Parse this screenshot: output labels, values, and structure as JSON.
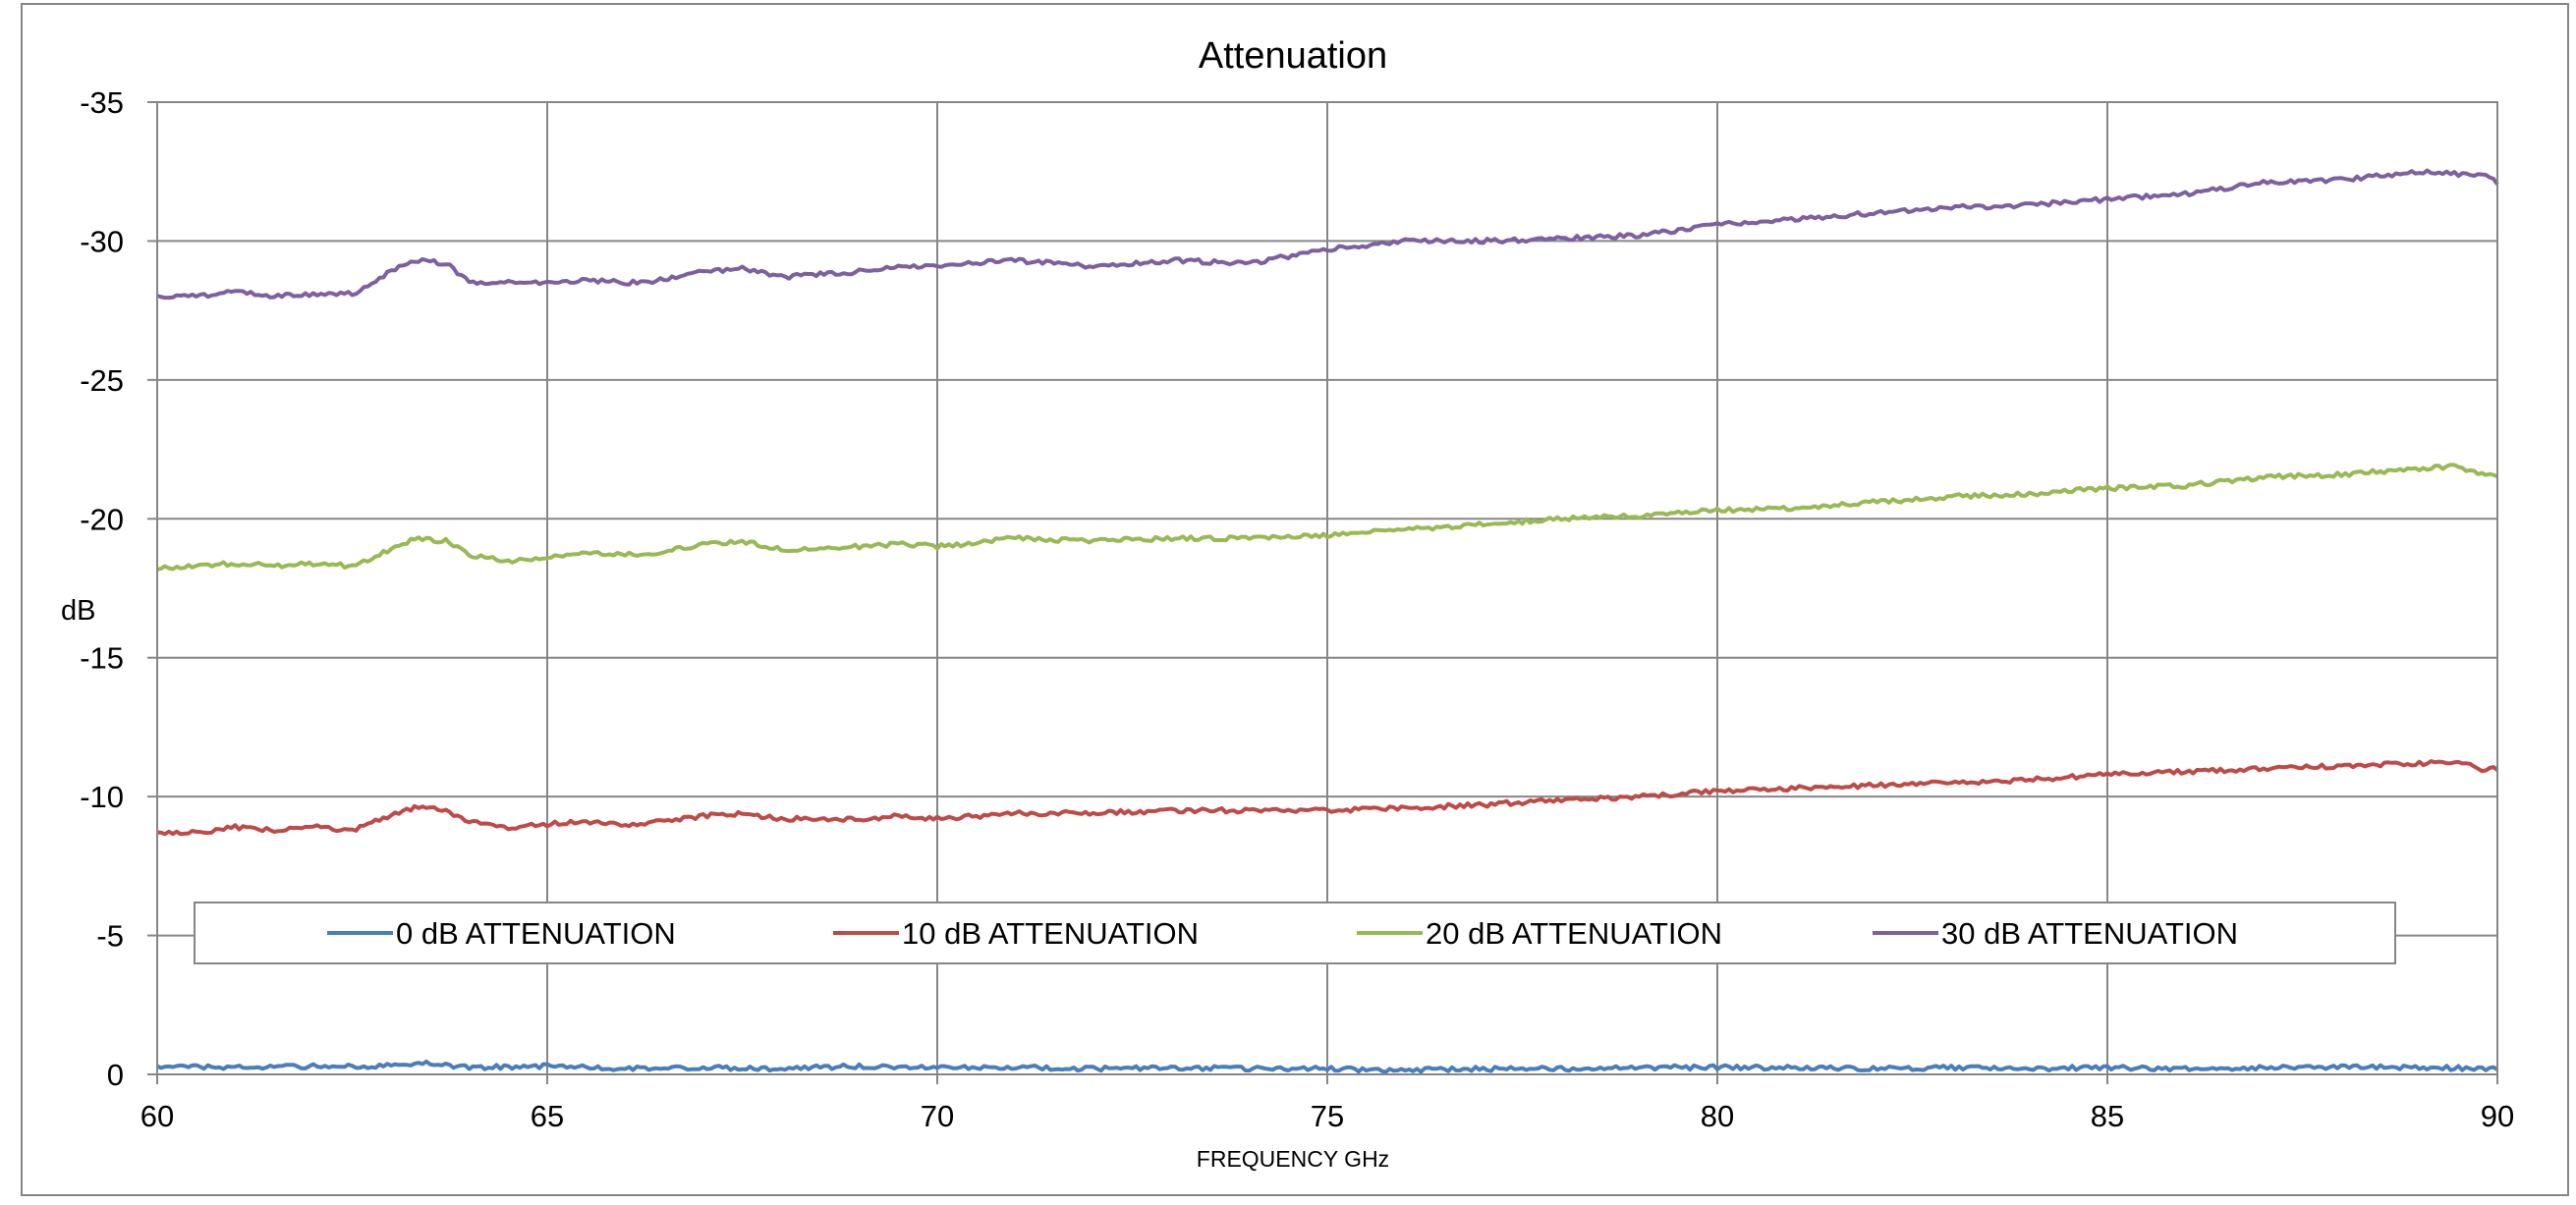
{
  "chart_data": {
    "type": "line",
    "title": "Attenuation",
    "xlabel": "FREQUENCY GHz",
    "ylabel": "dB",
    "xlim": [
      60,
      90
    ],
    "ylim": [
      0,
      -35
    ],
    "y_axis_inverted": true,
    "grid": true,
    "legend_position": "bottom-inside",
    "x_ticks": [
      60,
      65,
      70,
      75,
      80,
      85,
      90
    ],
    "y_ticks": [
      0,
      -5,
      -10,
      -15,
      -20,
      -25,
      -30,
      -35
    ],
    "x_tick_labels": [
      "60",
      "65",
      "70",
      "75",
      "80",
      "85",
      "90"
    ],
    "y_tick_labels": [
      "0",
      "-5",
      "-10",
      "-15",
      "-20",
      "-25",
      "-30",
      "-35"
    ],
    "series": [
      {
        "name": "0 dB ATTENUATION",
        "color": "#4a7ebb",
        "x": [
          60,
          61,
          62,
          63,
          63.4,
          64,
          65,
          66,
          67,
          68,
          69,
          70,
          71,
          72,
          73,
          74,
          75,
          76,
          77,
          78,
          79,
          80,
          81,
          82,
          83,
          84,
          85,
          86,
          87,
          88,
          89,
          90
        ],
        "y": [
          -0.3,
          -0.25,
          -0.3,
          -0.3,
          -0.4,
          -0.25,
          -0.3,
          -0.2,
          -0.25,
          -0.2,
          -0.3,
          -0.25,
          -0.25,
          -0.2,
          -0.25,
          -0.2,
          -0.2,
          -0.15,
          -0.2,
          -0.2,
          -0.25,
          -0.25,
          -0.25,
          -0.2,
          -0.25,
          -0.2,
          -0.25,
          -0.2,
          -0.25,
          -0.25,
          -0.25,
          -0.2
        ]
      },
      {
        "name": "10 dB ATTENUATION",
        "color": "#be4b48",
        "x": [
          60,
          60.5,
          61,
          61.5,
          62,
          62.5,
          63,
          63.3,
          63.7,
          64,
          64.5,
          65,
          65.5,
          66,
          66.5,
          67,
          67.5,
          68,
          68.5,
          69,
          69.5,
          70,
          71,
          72,
          73,
          74,
          75,
          76,
          77,
          78,
          79,
          80,
          81,
          82,
          83,
          84,
          85,
          86,
          87,
          88,
          89,
          89.5,
          89.8,
          90
        ],
        "y": [
          -8.7,
          -8.7,
          -8.9,
          -8.8,
          -8.9,
          -8.8,
          -9.3,
          -9.6,
          -9.5,
          -9.1,
          -8.9,
          -9.0,
          -9.1,
          -9.0,
          -9.1,
          -9.3,
          -9.4,
          -9.2,
          -9.2,
          -9.2,
          -9.3,
          -9.2,
          -9.4,
          -9.4,
          -9.5,
          -9.5,
          -9.5,
          -9.6,
          -9.7,
          -9.9,
          -10.0,
          -10.2,
          -10.3,
          -10.4,
          -10.5,
          -10.6,
          -10.8,
          -10.9,
          -11.0,
          -11.1,
          -11.2,
          -11.3,
          -11.0,
          -11.0
        ]
      },
      {
        "name": "20 dB ATTENUATION",
        "color": "#98b954",
        "x": [
          60,
          60.5,
          61,
          61.5,
          62,
          62.5,
          63,
          63.3,
          63.7,
          64,
          64.5,
          65,
          65.5,
          66,
          66.5,
          67,
          67.5,
          68,
          68.5,
          69,
          69.5,
          70,
          71,
          72,
          73,
          74,
          75,
          76,
          77,
          78,
          79,
          80,
          81,
          82,
          83,
          84,
          85,
          86,
          87,
          88,
          89,
          89.5,
          89.8,
          90
        ],
        "y": [
          -18.2,
          -18.3,
          -18.4,
          -18.3,
          -18.4,
          -18.3,
          -18.9,
          -19.3,
          -19.2,
          -18.7,
          -18.5,
          -18.6,
          -18.8,
          -18.7,
          -18.8,
          -19.1,
          -19.2,
          -18.9,
          -18.9,
          -19.0,
          -19.1,
          -19.0,
          -19.3,
          -19.2,
          -19.3,
          -19.3,
          -19.4,
          -19.6,
          -19.8,
          -20.0,
          -20.1,
          -20.3,
          -20.4,
          -20.6,
          -20.8,
          -20.9,
          -21.1,
          -21.2,
          -21.5,
          -21.6,
          -21.8,
          -21.9,
          -21.6,
          -21.6
        ]
      },
      {
        "name": "30 dB ATTENUATION",
        "color": "#7d60a0",
        "x": [
          60,
          60.5,
          61,
          61.5,
          62,
          62.5,
          63,
          63.3,
          63.7,
          64,
          64.5,
          65,
          65.5,
          66,
          66.5,
          67,
          67.5,
          68,
          68.5,
          69,
          69.5,
          70,
          71,
          72,
          73,
          74,
          75,
          76,
          77,
          78,
          79,
          80,
          81,
          82,
          83,
          84,
          85,
          86,
          87,
          88,
          89,
          89.5,
          89.8,
          90
        ],
        "y": [
          -28.0,
          -28.0,
          -28.2,
          -28.0,
          -28.1,
          -28.1,
          -28.9,
          -29.3,
          -29.2,
          -28.5,
          -28.5,
          -28.5,
          -28.6,
          -28.5,
          -28.6,
          -28.9,
          -29.0,
          -28.7,
          -28.8,
          -28.9,
          -29.1,
          -29.1,
          -29.3,
          -29.1,
          -29.3,
          -29.2,
          -29.7,
          -30.0,
          -30.0,
          -30.1,
          -30.2,
          -30.6,
          -30.8,
          -31.0,
          -31.2,
          -31.3,
          -31.5,
          -31.7,
          -32.1,
          -32.2,
          -32.5,
          -32.4,
          -32.4,
          -32.1
        ]
      }
    ]
  }
}
